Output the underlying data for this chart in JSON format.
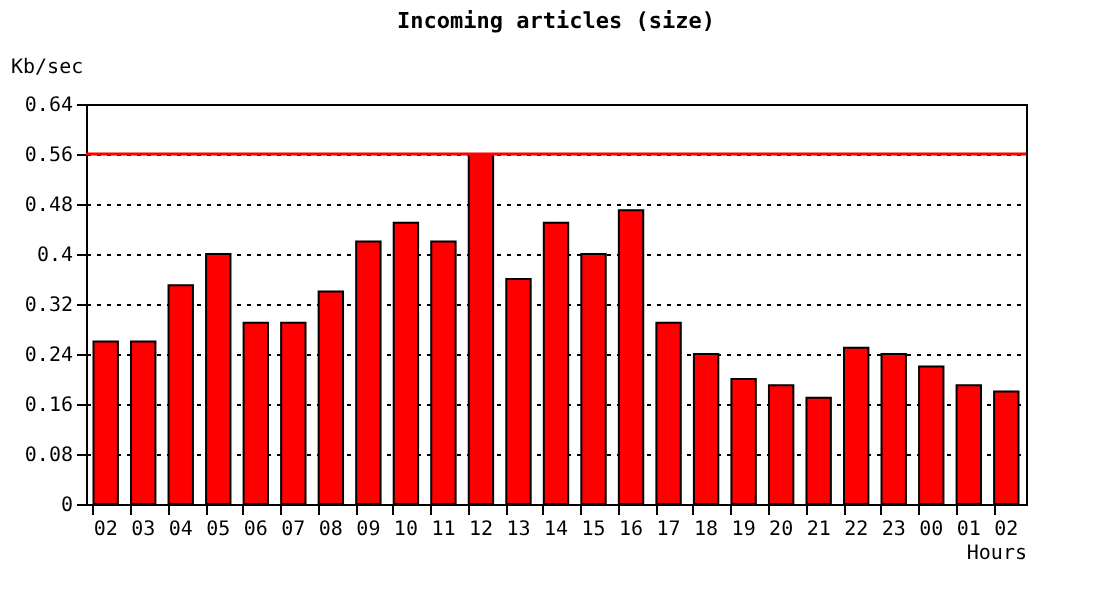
{
  "chart_data": {
    "type": "bar",
    "title": "Incoming articles (size)",
    "ylabel": "Kb/sec",
    "xlabel": "Hours",
    "categories": [
      "02",
      "03",
      "04",
      "05",
      "06",
      "07",
      "08",
      "09",
      "10",
      "11",
      "12",
      "13",
      "14",
      "15",
      "16",
      "17",
      "18",
      "19",
      "20",
      "21",
      "22",
      "23",
      "00",
      "01",
      "02"
    ],
    "values": [
      0.26,
      0.26,
      0.35,
      0.4,
      0.29,
      0.29,
      0.34,
      0.42,
      0.45,
      0.42,
      0.56,
      0.36,
      0.45,
      0.4,
      0.47,
      0.29,
      0.24,
      0.2,
      0.19,
      0.17,
      0.25,
      0.24,
      0.22,
      0.19,
      0.18
    ],
    "color": "#ff0000",
    "ylim": [
      0,
      0.64
    ],
    "yticks": [
      0,
      0.08,
      0.16,
      0.24,
      0.32,
      0.4,
      0.48,
      0.56,
      0.64
    ],
    "ref_lines": [
      {
        "axis": "y",
        "value": 0.56,
        "color": "#ff0000"
      }
    ],
    "grid": "y"
  }
}
